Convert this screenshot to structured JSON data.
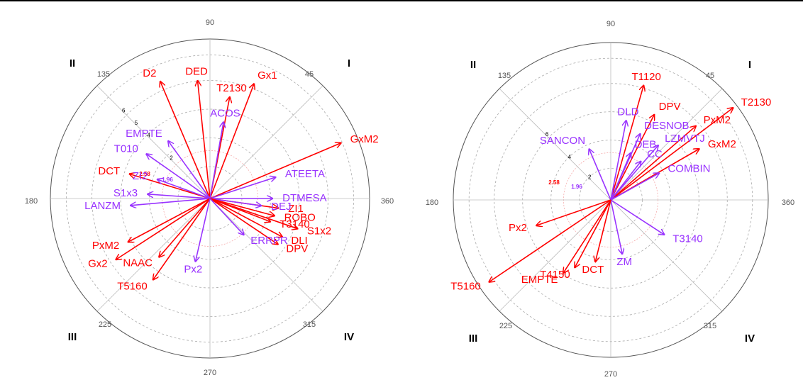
{
  "chart_data": [
    {
      "type": "polar-vector",
      "angle_labels": [
        "90",
        "45",
        "360",
        "315",
        "270",
        "225",
        "180",
        "135"
      ],
      "quadrant_labels": [
        "I",
        "II",
        "III",
        "IV"
      ],
      "radial_ticks": [
        "2",
        "4",
        "5",
        "6"
      ],
      "critical_labels": [
        {
          "text": "2.58",
          "color": "#ff0000"
        },
        {
          "text": "1.96",
          "color": "#9933ff"
        }
      ],
      "r_max": 7.4,
      "colors": {
        "significant": "#ff0000",
        "nonsignificant": "#9933ff"
      },
      "vectors": [
        {
          "label": "D2",
          "angle": 113,
          "length": 5.9,
          "color": "red"
        },
        {
          "label": "DED",
          "angle": 96,
          "length": 5.5,
          "color": "red"
        },
        {
          "label": "Gx1",
          "angle": 69,
          "length": 5.7,
          "color": "red"
        },
        {
          "label": "T2130",
          "angle": 79,
          "length": 4.8,
          "color": "red"
        },
        {
          "label": "ACOS",
          "angle": 80,
          "length": 3.6,
          "color": "purple"
        },
        {
          "label": "GxM2",
          "angle": 23,
          "length": 6.6,
          "color": "red"
        },
        {
          "label": "EMPTE",
          "angle": 126,
          "length": 3.3,
          "color": "purple"
        },
        {
          "label": "T010",
          "angle": 145,
          "length": 3.6,
          "color": "purple"
        },
        {
          "label": "DCT",
          "angle": 163,
          "length": 3.9,
          "color": "red"
        },
        {
          "label": "ZI2",
          "angle": 160,
          "length": 2.6,
          "color": "purple"
        },
        {
          "label": "S1x3",
          "angle": 176,
          "length": 2.9,
          "color": "purple"
        },
        {
          "label": "ATEETA",
          "angle": 18,
          "length": 3.2,
          "color": "purple"
        },
        {
          "label": "DTMESA",
          "angle": 0,
          "length": 2.9,
          "color": "purple"
        },
        {
          "label": "ZI1",
          "angle": 352,
          "length": 3.2,
          "color": "red"
        },
        {
          "label": "DEJ",
          "angle": 352,
          "length": 2.4,
          "color": "purple"
        },
        {
          "label": "ROBO",
          "angle": 345,
          "length": 3.1,
          "color": "red"
        },
        {
          "label": "S1x2",
          "angle": 341,
          "length": 4.3,
          "color": "red"
        },
        {
          "label": "T3140",
          "angle": 339,
          "length": 3.0,
          "color": "red"
        },
        {
          "label": "DLI",
          "angle": 332,
          "length": 3.8,
          "color": "red"
        },
        {
          "label": "DPV",
          "angle": 326,
          "length": 3.8,
          "color": "red"
        },
        {
          "label": "ERRPR",
          "angle": 313,
          "length": 2.3,
          "color": "purple"
        },
        {
          "label": "LANZM",
          "angle": 185,
          "length": 3.7,
          "color": "purple"
        },
        {
          "label": "PxM2",
          "angle": 208,
          "length": 4.3,
          "color": "red"
        },
        {
          "label": "NAAC",
          "angle": 229,
          "length": 3.6,
          "color": "red"
        },
        {
          "label": "Gx2",
          "angle": 213,
          "length": 5.2,
          "color": "red"
        },
        {
          "label": "T5160",
          "angle": 235,
          "length": 4.6,
          "color": "red"
        },
        {
          "label": "Px2",
          "angle": 257,
          "length": 3.0,
          "color": "purple"
        }
      ]
    },
    {
      "type": "polar-vector",
      "angle_labels": [
        "90",
        "45",
        "360",
        "315",
        "270",
        "225",
        "180",
        "135"
      ],
      "quadrant_labels": [
        "I",
        "II",
        "III",
        "IV"
      ],
      "radial_ticks": [
        "2",
        "4",
        "6"
      ],
      "critical_labels": [
        {
          "text": "2.58",
          "color": "#ff0000"
        },
        {
          "text": "1.96",
          "color": "#9933ff"
        }
      ],
      "r_max": 7.4,
      "colors": {
        "significant": "#ff0000",
        "nonsignificant": "#9933ff"
      },
      "vectors": [
        {
          "label": "T1120",
          "angle": 74,
          "length": 5.6,
          "color": "red"
        },
        {
          "label": "T2130",
          "angle": 37,
          "length": 7.2,
          "color": "red"
        },
        {
          "label": "PxM2",
          "angle": 41,
          "length": 5.3,
          "color": "red"
        },
        {
          "label": "GxM2",
          "angle": 30,
          "length": 4.8,
          "color": "red"
        },
        {
          "label": "DPV",
          "angle": 63,
          "length": 4.5,
          "color": "red"
        },
        {
          "label": "DLD",
          "angle": 79,
          "length": 3.8,
          "color": "purple"
        },
        {
          "label": "DESNOB",
          "angle": 66,
          "length": 3.4,
          "color": "purple"
        },
        {
          "label": "LZMVTJ",
          "angle": 49,
          "length": 3.4,
          "color": "purple"
        },
        {
          "label": "SANCON",
          "angle": 113,
          "length": 2.6,
          "color": "purple"
        },
        {
          "label": "DEB",
          "angle": 67,
          "length": 2.4,
          "color": "purple"
        },
        {
          "label": "CC",
          "angle": 52,
          "length": 2.3,
          "color": "purple"
        },
        {
          "label": "COMBIN",
          "angle": 29,
          "length": 2.6,
          "color": "purple"
        },
        {
          "label": "T3140",
          "angle": 327,
          "length": 3.0,
          "color": "purple"
        },
        {
          "label": "ZM",
          "angle": 282,
          "length": 2.6,
          "color": "purple"
        },
        {
          "label": "DCT",
          "angle": 256,
          "length": 3.0,
          "color": "red"
        },
        {
          "label": "T4150",
          "angle": 242,
          "length": 3.6,
          "color": "red"
        },
        {
          "label": "EMPTE",
          "angle": 237,
          "length": 4.1,
          "color": "red"
        },
        {
          "label": "Px2",
          "angle": 199,
          "length": 3.7,
          "color": "red"
        },
        {
          "label": "T5160",
          "angle": 214,
          "length": 6.9,
          "color": "red"
        }
      ]
    }
  ]
}
